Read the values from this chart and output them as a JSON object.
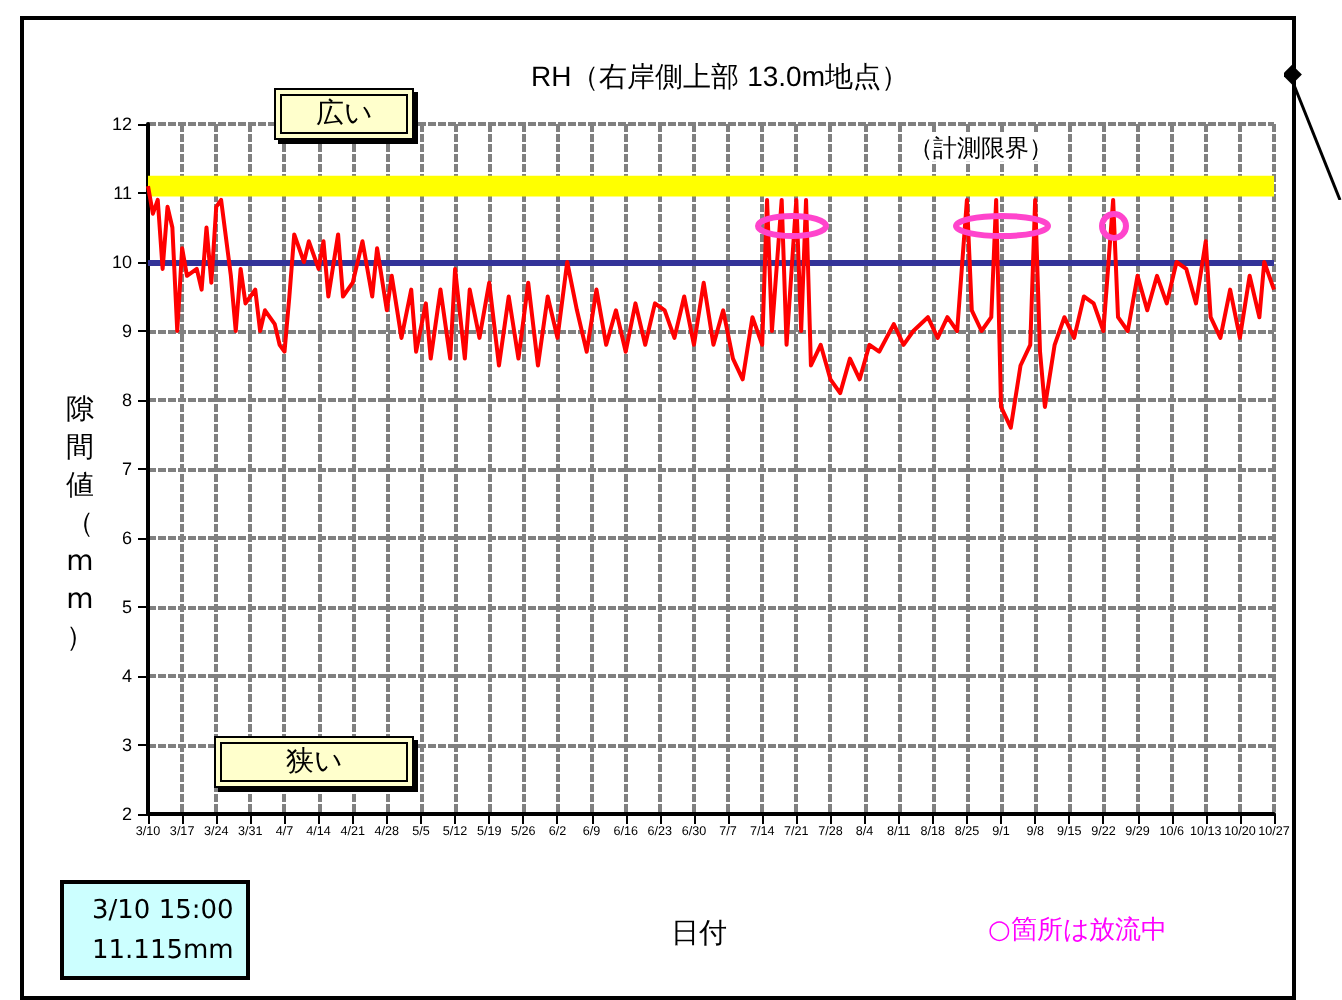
{
  "chart_data": {
    "type": "line",
    "title": "RH（右岸側上部 13.0m地点）",
    "xlabel": "日付",
    "ylabel": "隙間値（mm）",
    "x": [
      "--03-10",
      "--03-11",
      "--03-12",
      "--03-13",
      "--03-14",
      "--03-15",
      "--03-16",
      "--03-17",
      "--03-18",
      "--03-20",
      "--03-21",
      "--03-22",
      "--03-23",
      "--03-24",
      "--03-25",
      "--03-27",
      "--03-28",
      "--03-29",
      "--03-30",
      "--04-01",
      "--04-02",
      "--04-03",
      "--04-05",
      "--04-06",
      "--04-07",
      "--04-08",
      "--04-09",
      "--04-11",
      "--04-12",
      "--04-14",
      "--04-15",
      "--04-16",
      "--04-18",
      "--04-19",
      "--04-21",
      "--04-23",
      "--04-25",
      "--04-26",
      "--04-28",
      "--04-29",
      "--05-01",
      "--05-03",
      "--05-04",
      "--05-06",
      "--05-07",
      "--05-09",
      "--05-11",
      "--05-12",
      "--05-14",
      "--05-15",
      "--05-17",
      "--05-19",
      "--05-21",
      "--05-23",
      "--05-25",
      "--05-27",
      "--05-29",
      "--05-31",
      "--06-02",
      "--06-04",
      "--06-06",
      "--06-08",
      "--06-10",
      "--06-12",
      "--06-14",
      "--06-16",
      "--06-18",
      "--06-20",
      "--06-22",
      "--06-24",
      "--06-26",
      "--06-28",
      "--06-30",
      "--07-02",
      "--07-04",
      "--07-06",
      "--07-08",
      "--07-10",
      "--07-12",
      "--07-14",
      "--07-15",
      "--07-16",
      "--07-18",
      "--07-19",
      "--07-21",
      "--07-22",
      "--07-23",
      "--07-24",
      "--07-26",
      "--07-28",
      "--07-30",
      "--08-01",
      "--08-03",
      "--08-05",
      "--08-07",
      "--08-10",
      "--08-12",
      "--08-14",
      "--08-17",
      "--08-19",
      "--08-21",
      "--08-23",
      "--08-25",
      "--08-26",
      "--08-28",
      "--08-30",
      "--08-31",
      "--09-01",
      "--09-03",
      "--09-05",
      "--09-07",
      "--09-08",
      "--09-09",
      "--09-10",
      "--09-12",
      "--09-14",
      "--09-16",
      "--09-18",
      "--09-20",
      "--09-22",
      "--09-24",
      "--09-25",
      "--09-27",
      "--09-29",
      "--10-01",
      "--10-03",
      "--10-05",
      "--10-07",
      "--10-09",
      "--10-11",
      "--10-13",
      "--10-14",
      "--10-16",
      "--10-18",
      "--10-20",
      "--10-22",
      "--10-24",
      "--10-25",
      "--10-27"
    ],
    "series": [
      {
        "color": "#ff0000",
        "values": [
          11.1,
          10.7,
          10.9,
          9.9,
          10.8,
          10.5,
          9.0,
          10.2,
          9.8,
          9.9,
          9.6,
          10.5,
          9.7,
          10.8,
          10.9,
          9.8,
          9.0,
          9.9,
          9.4,
          9.6,
          9.0,
          9.3,
          9.1,
          8.8,
          8.7,
          9.5,
          10.4,
          10.0,
          10.3,
          9.9,
          10.3,
          9.5,
          10.4,
          9.5,
          9.7,
          10.3,
          9.5,
          10.2,
          9.3,
          9.8,
          8.9,
          9.6,
          8.7,
          9.4,
          8.6,
          9.6,
          8.6,
          9.9,
          8.6,
          9.6,
          8.9,
          9.7,
          8.5,
          9.5,
          8.6,
          9.7,
          8.5,
          9.5,
          8.9,
          10.0,
          9.3,
          8.7,
          9.6,
          8.8,
          9.3,
          8.7,
          9.4,
          8.8,
          9.4,
          9.3,
          8.9,
          9.5,
          8.8,
          9.7,
          8.8,
          9.3,
          8.6,
          8.3,
          9.2,
          8.8,
          10.9,
          9.0,
          10.9,
          8.8,
          10.9,
          9.0,
          10.9,
          8.5,
          8.8,
          8.3,
          8.1,
          8.6,
          8.3,
          8.8,
          8.7,
          9.1,
          8.8,
          9.0,
          9.2,
          8.9,
          9.2,
          9.0,
          10.9,
          9.3,
          9.0,
          9.2,
          10.9,
          7.9,
          7.6,
          8.5,
          8.8,
          10.9,
          8.7,
          7.9,
          8.8,
          9.2,
          8.9,
          9.5,
          9.4,
          9.0,
          10.9,
          9.2,
          9.0,
          9.8,
          9.3,
          9.8,
          9.4,
          10.0,
          9.9,
          9.4,
          10.3,
          9.2,
          8.9,
          9.6,
          8.9,
          9.8,
          9.2,
          10.0,
          9.6
        ]
      }
    ],
    "xlim": [
      "--03-10",
      "--10-27"
    ],
    "xticks": [
      {
        "value": "--03-10",
        "label": "3/10"
      },
      {
        "value": "--03-17",
        "label": "3/17"
      },
      {
        "value": "--03-24",
        "label": "3/24"
      },
      {
        "value": "--03-31",
        "label": "3/31"
      },
      {
        "value": "--04-07",
        "label": "4/7"
      },
      {
        "value": "--04-14",
        "label": "4/14"
      },
      {
        "value": "--04-21",
        "label": "4/21"
      },
      {
        "value": "--04-28",
        "label": "4/28"
      },
      {
        "value": "--05-05",
        "label": "5/5"
      },
      {
        "value": "--05-12",
        "label": "5/12"
      },
      {
        "value": "--05-19",
        "label": "5/19"
      },
      {
        "value": "--05-26",
        "label": "5/26"
      },
      {
        "value": "--06-02",
        "label": "6/2"
      },
      {
        "value": "--06-09",
        "label": "6/9"
      },
      {
        "value": "--06-16",
        "label": "6/16"
      },
      {
        "value": "--06-23",
        "label": "6/23"
      },
      {
        "value": "--06-30",
        "label": "6/30"
      },
      {
        "value": "--07-07",
        "label": "7/7"
      },
      {
        "value": "--07-14",
        "label": "7/14"
      },
      {
        "value": "--07-21",
        "label": "7/21"
      },
      {
        "value": "--07-28",
        "label": "7/28"
      },
      {
        "value": "--08-04",
        "label": "8/4"
      },
      {
        "value": "--08-11",
        "label": "8/11"
      },
      {
        "value": "--08-18",
        "label": "8/18"
      },
      {
        "value": "--08-25",
        "label": "8/25"
      },
      {
        "value": "--09-01",
        "label": "9/1"
      },
      {
        "value": "--09-08",
        "label": "9/8"
      },
      {
        "value": "--09-15",
        "label": "9/15"
      },
      {
        "value": "--09-22",
        "label": "9/22"
      },
      {
        "value": "--09-29",
        "label": "9/29"
      },
      {
        "value": "--10-06",
        "label": "10/6"
      },
      {
        "value": "--10-13",
        "label": "10/13"
      },
      {
        "value": "--10-20",
        "label": "10/20"
      },
      {
        "value": "--10-27",
        "label": "10/27"
      }
    ],
    "ylim": [
      2,
      12
    ],
    "yticks": [
      2,
      3,
      4,
      5,
      6,
      7,
      8,
      9,
      10,
      11,
      12
    ],
    "grid": true,
    "marker": "none",
    "line_style": "solid",
    "ref_lines": [
      {
        "axis": "y",
        "value": 10,
        "color": "#333399"
      }
    ],
    "bands": [
      {
        "axis": "y",
        "from": 10.95,
        "to": 11.25,
        "label": "（計測限界）",
        "color": "#ffff00"
      }
    ],
    "annotations": [
      "広い",
      "狭い",
      "3/10 15:00\n11.115mm",
      "○箇所は放流中"
    ]
  }
}
